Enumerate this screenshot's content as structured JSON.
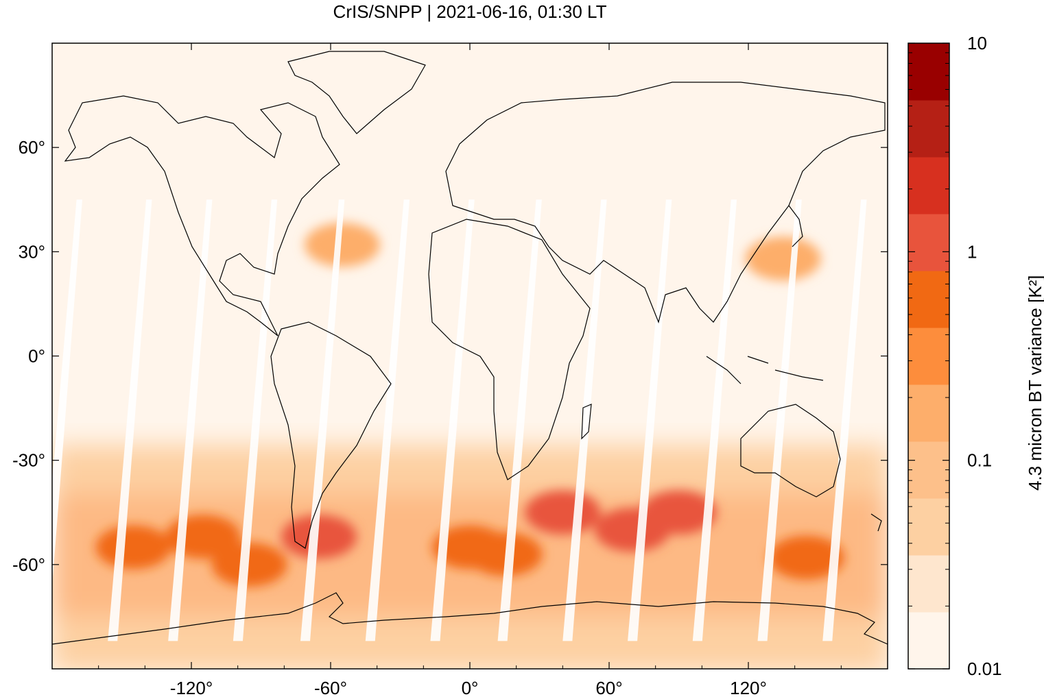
{
  "title": "CrIS/SNPP | 2021-06-16, 01:30 LT",
  "map": {
    "projection": "equirectangular",
    "extent": {
      "lon": [
        -180,
        180
      ],
      "lat": [
        -90,
        90
      ]
    },
    "x_ticks": [
      "-120°",
      "-60°",
      "0°",
      "60°",
      "120°"
    ],
    "x_tick_values": [
      -120,
      -60,
      0,
      60,
      120
    ],
    "y_ticks": [
      "60°",
      "30°",
      "0°",
      "-30°",
      "-60°"
    ],
    "y_tick_values": [
      60,
      30,
      0,
      -30,
      -60
    ],
    "background_color": "#fff5eb",
    "coastline_color": "#000000",
    "swath_gap_color": "#ffffff",
    "hotspots": [
      {
        "lon": -145,
        "lat": -55,
        "value": 0.6
      },
      {
        "lon": -115,
        "lat": -52,
        "value": 0.6
      },
      {
        "lon": -95,
        "lat": -60,
        "value": 0.5
      },
      {
        "lon": -65,
        "lat": -52,
        "value": 1.2
      },
      {
        "lon": 0,
        "lat": -55,
        "value": 0.8
      },
      {
        "lon": 15,
        "lat": -57,
        "value": 0.5
      },
      {
        "lon": 40,
        "lat": -45,
        "value": 1.0
      },
      {
        "lon": 70,
        "lat": -50,
        "value": 1.2
      },
      {
        "lon": 90,
        "lat": -45,
        "value": 0.9
      },
      {
        "lon": 145,
        "lat": -58,
        "value": 0.5
      },
      {
        "lon": -55,
        "lat": 32,
        "value": 0.15
      },
      {
        "lon": 135,
        "lat": 28,
        "value": 0.15
      }
    ]
  },
  "colorbar": {
    "label": "4.3 micron BT variance [K²]",
    "scale": "log",
    "range": [
      0.01,
      10
    ],
    "tick_labels": [
      "10",
      "1",
      "0.1",
      "0.01"
    ],
    "tick_values": [
      10,
      1,
      0.1,
      0.01
    ],
    "colors": [
      "#fff5eb",
      "#fee6ce",
      "#fdd0a2",
      "#fdc08a",
      "#fdae6b",
      "#fd8d3c",
      "#f16913",
      "#e8543c",
      "#d7301f",
      "#b52015",
      "#990000"
    ],
    "note_colors_bottom_to_top": true
  }
}
